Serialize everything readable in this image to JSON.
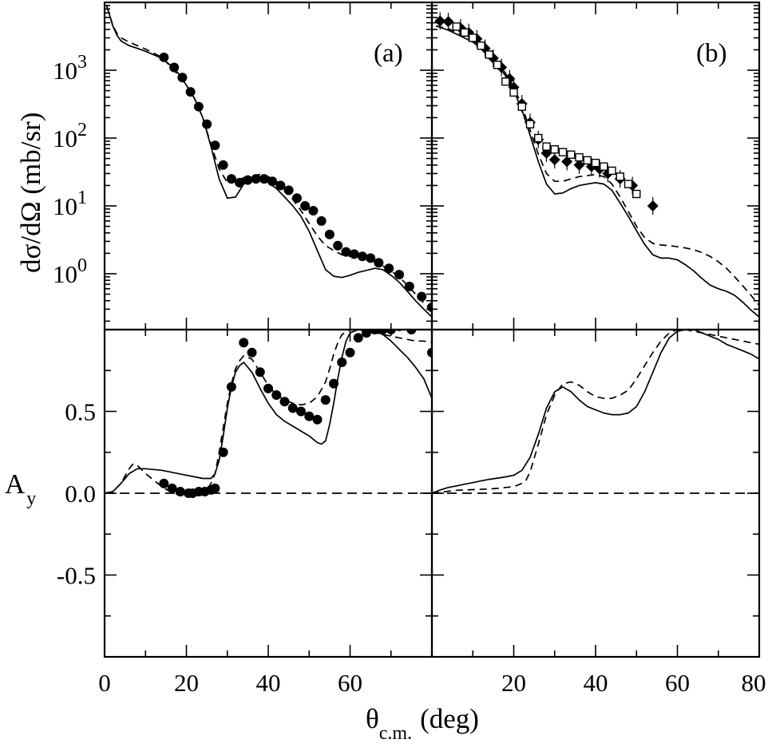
{
  "chart_data": [
    {
      "id": "a-top",
      "type": "line",
      "panel_label": "(a)",
      "ylabel": "dσ/dΩ (mb/sr)",
      "yscale": "log",
      "xlim": [
        0,
        80
      ],
      "ylim": [
        0.15,
        10000
      ],
      "ytick_values": [
        1,
        10,
        100,
        1000
      ],
      "ytick_labels": [
        {
          "base": "10",
          "exp": "0"
        },
        {
          "base": "10",
          "exp": "1"
        },
        {
          "base": "10",
          "exp": "2"
        },
        {
          "base": "10",
          "exp": "3"
        }
      ],
      "series": [
        {
          "name": "solid calculation",
          "style": "solid",
          "x": [
            0.5,
            2,
            3,
            4,
            6,
            8,
            10,
            14,
            16,
            18,
            20,
            22,
            24,
            26,
            28,
            30,
            32,
            34,
            36,
            38,
            40,
            42,
            44,
            46,
            48,
            50,
            52,
            54,
            56,
            58,
            60,
            62,
            64,
            66,
            68,
            70,
            72,
            74,
            76,
            78,
            80
          ],
          "y": [
            9000,
            4500,
            3300,
            2700,
            2300,
            2100,
            1900,
            1500,
            1200,
            900,
            600,
            380,
            200,
            75,
            25,
            13,
            13.5,
            21,
            25,
            25,
            22,
            18,
            13.5,
            10,
            7,
            4.2,
            2.2,
            1.15,
            0.92,
            0.88,
            0.95,
            1.05,
            1.12,
            1.2,
            1.15,
            0.95,
            0.75,
            0.55,
            0.4,
            0.3,
            0.23
          ]
        },
        {
          "name": "dashed calculation",
          "style": "dashed",
          "x": [
            0.5,
            2,
            3,
            4,
            6,
            8,
            10,
            14,
            16,
            18,
            20,
            22,
            24,
            26,
            28,
            30,
            32,
            34,
            36,
            38,
            40,
            42,
            44,
            46,
            48,
            50,
            52,
            54,
            56,
            58,
            60,
            62,
            64,
            66,
            68,
            70,
            72,
            74,
            76,
            78,
            80
          ],
          "y": [
            9000,
            4600,
            3500,
            3000,
            2600,
            2300,
            2050,
            1550,
            1150,
            850,
            600,
            380,
            200,
            80,
            35,
            22,
            23,
            26,
            28,
            29,
            27,
            23,
            17,
            12.5,
            8.5,
            5.5,
            3.6,
            2.6,
            2.2,
            1.9,
            1.8,
            1.75,
            1.65,
            1.5,
            1.3,
            1.1,
            0.9,
            0.68,
            0.5,
            0.37,
            0.29
          ]
        },
        {
          "name": "data",
          "style": "marker-circle-filled",
          "x": [
            14.5,
            17,
            19,
            21,
            23,
            25,
            27,
            29,
            31,
            33,
            35,
            37,
            39,
            41,
            43,
            45,
            47,
            49,
            51,
            53,
            55,
            57,
            59,
            61,
            63,
            65,
            67,
            69.5,
            72,
            74.5,
            77.5,
            80
          ],
          "y": [
            1550,
            1100,
            780,
            480,
            290,
            160,
            78,
            40,
            25,
            22,
            24,
            25,
            25,
            23,
            20,
            17,
            13,
            10,
            8.5,
            6,
            3.8,
            2.6,
            2.1,
            1.95,
            1.8,
            1.7,
            1.45,
            1.2,
            0.97,
            0.65,
            0.46,
            0.32
          ]
        }
      ]
    },
    {
      "id": "b-top",
      "type": "line",
      "panel_label": "(b)",
      "yscale": "log",
      "xlim": [
        0,
        80
      ],
      "ylim": [
        0.15,
        10000
      ],
      "series": [
        {
          "name": "solid calculation",
          "style": "solid",
          "x": [
            1,
            4,
            7,
            10,
            14,
            16,
            18,
            20,
            22,
            24,
            26,
            28,
            30,
            32,
            34,
            36,
            38,
            40,
            42,
            44,
            46,
            48,
            50,
            52,
            54,
            56,
            58,
            60,
            62,
            64,
            66,
            68,
            70,
            72,
            74,
            76,
            78,
            80
          ],
          "y": [
            4500,
            3900,
            3200,
            2600,
            1700,
            1250,
            820,
            500,
            260,
            110,
            45,
            21,
            15,
            15.5,
            18,
            20,
            21,
            22,
            21,
            17,
            11,
            7,
            4.3,
            2.7,
            1.9,
            1.7,
            1.7,
            1.6,
            1.35,
            1.1,
            0.85,
            0.68,
            0.6,
            0.55,
            0.48,
            0.38,
            0.29,
            0.23
          ]
        },
        {
          "name": "dashed calculation",
          "style": "dashed",
          "x": [
            1,
            4,
            7,
            10,
            14,
            16,
            18,
            20,
            22,
            24,
            26,
            28,
            30,
            32,
            34,
            36,
            38,
            40,
            42,
            44,
            46,
            48,
            50,
            52,
            54,
            56,
            58,
            60,
            62,
            64,
            66,
            68,
            70,
            72,
            74,
            76,
            78,
            80
          ],
          "y": [
            4500,
            4100,
            3400,
            2700,
            1800,
            1350,
            900,
            560,
            300,
            130,
            58,
            30,
            23,
            23,
            25,
            27,
            28,
            29,
            27,
            21,
            13.5,
            8.3,
            5,
            3.4,
            2.8,
            2.65,
            2.6,
            2.5,
            2.4,
            2.25,
            2.05,
            1.8,
            1.5,
            1.2,
            0.9,
            0.66,
            0.48,
            0.34
          ]
        },
        {
          "name": "data (filled diamonds)",
          "style": "marker-diamond-filled",
          "x": [
            2,
            4,
            7,
            9,
            11,
            13,
            15,
            17,
            19,
            20,
            22,
            24,
            26,
            28,
            30,
            33,
            36,
            39,
            41,
            43,
            46,
            49,
            54
          ],
          "y": [
            5300,
            5200,
            4200,
            3600,
            2900,
            2100,
            1500,
            1100,
            750,
            560,
            320,
            170,
            95,
            60,
            48,
            45,
            40,
            38,
            35,
            30,
            25,
            20,
            10
          ]
        },
        {
          "name": "data (open squares)",
          "style": "marker-square-open",
          "x": [
            6,
            8,
            10,
            12,
            14,
            16,
            18,
            20,
            22,
            24,
            26,
            28,
            30,
            32,
            34,
            36,
            38,
            40,
            42,
            44,
            46,
            48,
            50
          ],
          "y": [
            4400,
            3600,
            3000,
            2300,
            1700,
            1200,
            680,
            470,
            290,
            160,
            100,
            75,
            68,
            62,
            57,
            52,
            47,
            43,
            38,
            33,
            27,
            21,
            15
          ]
        }
      ]
    },
    {
      "id": "a-bottom",
      "type": "line",
      "ylabel_main": "A",
      "ylabel_sub": "y",
      "xlim": [
        0,
        80
      ],
      "ylim": [
        -1.0,
        1.0
      ],
      "ytick_values": [
        0.5,
        0.0,
        -0.5
      ],
      "ytick_labels": [
        "0.5",
        "0.0",
        "-0.5"
      ],
      "xtick_labels": [
        "0",
        "20",
        "40",
        "60"
      ],
      "xtick_values": [
        0,
        20,
        40,
        60
      ],
      "series": [
        {
          "name": "solid calculation",
          "style": "solid",
          "x": [
            0,
            2,
            4,
            6,
            8,
            10,
            14,
            18,
            22,
            24,
            26,
            27,
            28,
            29,
            30,
            31,
            32,
            33,
            34,
            36,
            38,
            40,
            42,
            44,
            46,
            48,
            50,
            52,
            53,
            54,
            55,
            56,
            57,
            58,
            59,
            60,
            62,
            64,
            66,
            68,
            70,
            72,
            74,
            76,
            78,
            80
          ],
          "y": [
            0,
            0.01,
            0.06,
            0.12,
            0.15,
            0.15,
            0.14,
            0.12,
            0.1,
            0.09,
            0.09,
            0.12,
            0.2,
            0.35,
            0.52,
            0.65,
            0.74,
            0.78,
            0.8,
            0.74,
            0.64,
            0.55,
            0.48,
            0.44,
            0.41,
            0.38,
            0.35,
            0.31,
            0.3,
            0.32,
            0.42,
            0.55,
            0.7,
            0.83,
            0.93,
            0.98,
            1.0,
            1.0,
            0.99,
            0.97,
            0.93,
            0.88,
            0.83,
            0.77,
            0.7,
            0.58
          ]
        },
        {
          "name": "dashed calculation",
          "style": "dashed",
          "x": [
            0,
            2,
            4,
            6,
            7,
            8,
            10,
            12,
            14,
            16,
            18,
            20,
            22,
            24,
            25,
            26,
            27,
            28,
            29,
            30,
            31,
            32,
            33,
            34,
            36,
            38,
            40,
            42,
            44,
            46,
            48,
            50,
            52,
            54,
            55,
            56,
            57,
            58,
            60,
            62,
            64,
            66,
            68,
            70,
            72,
            74,
            76,
            78,
            80
          ],
          "y": [
            0,
            0.01,
            0.06,
            0.15,
            0.18,
            0.17,
            0.12,
            0.08,
            0.04,
            0.01,
            -0.01,
            -0.02,
            -0.02,
            -0.01,
            0.02,
            0.06,
            0.12,
            0.25,
            0.4,
            0.55,
            0.67,
            0.76,
            0.81,
            0.84,
            0.82,
            0.74,
            0.66,
            0.6,
            0.57,
            0.55,
            0.54,
            0.55,
            0.59,
            0.68,
            0.76,
            0.85,
            0.92,
            0.97,
            1.0,
            1.0,
            0.99,
            0.98,
            0.97,
            0.96,
            0.95,
            0.94,
            0.93,
            0.93,
            0.92
          ]
        },
        {
          "name": "zero reference",
          "style": "dashed-reference",
          "x": [
            0,
            80
          ],
          "y": [
            0,
            0
          ]
        },
        {
          "name": "data",
          "style": "marker-circle-filled",
          "x": [
            14.5,
            16.5,
            18.5,
            20.5,
            21.5,
            23,
            24.5,
            26,
            27,
            29,
            31,
            34,
            36,
            38,
            40,
            42,
            44,
            46,
            48,
            50,
            52,
            54,
            56,
            58,
            60,
            62,
            64,
            66,
            68,
            70,
            72,
            75,
            80
          ],
          "y": [
            0.06,
            0.03,
            0.01,
            0.0,
            0.0,
            0.01,
            0.01,
            0.02,
            0.03,
            0.25,
            0.65,
            0.92,
            0.86,
            0.74,
            0.64,
            0.6,
            0.56,
            0.52,
            0.5,
            0.47,
            0.45,
            0.57,
            0.67,
            0.8,
            0.86,
            0.95,
            0.98,
            1.0,
            1.0,
            1.0,
            1.02,
            1.0,
            0.86
          ]
        }
      ]
    },
    {
      "id": "b-bottom",
      "type": "line",
      "xlim": [
        0,
        80
      ],
      "ylim": [
        -1.0,
        1.0
      ],
      "xtick_labels": [
        "20",
        "40",
        "60",
        "80"
      ],
      "xtick_values": [
        20,
        40,
        60,
        80
      ],
      "series": [
        {
          "name": "solid calculation",
          "style": "solid",
          "x": [
            0,
            2,
            4,
            6,
            8,
            10,
            12,
            14,
            16,
            18,
            20,
            22,
            24,
            26,
            28,
            30,
            32,
            34,
            36,
            38,
            40,
            42,
            44,
            46,
            48,
            50,
            52,
            54,
            56,
            58,
            60,
            62,
            64,
            66,
            68,
            70,
            72,
            74,
            76,
            78,
            80
          ],
          "y": [
            0,
            0.02,
            0.035,
            0.045,
            0.055,
            0.065,
            0.075,
            0.085,
            0.092,
            0.1,
            0.11,
            0.14,
            0.22,
            0.36,
            0.52,
            0.62,
            0.65,
            0.62,
            0.57,
            0.53,
            0.51,
            0.49,
            0.48,
            0.48,
            0.49,
            0.53,
            0.62,
            0.74,
            0.86,
            0.95,
            0.99,
            1.0,
            1.0,
            0.98,
            0.96,
            0.94,
            0.91,
            0.89,
            0.87,
            0.85,
            0.82
          ]
        },
        {
          "name": "dashed calculation",
          "style": "dashed",
          "x": [
            0,
            2,
            4,
            6,
            8,
            10,
            12,
            14,
            16,
            18,
            20,
            22,
            23,
            24,
            26,
            28,
            30,
            32,
            34,
            36,
            38,
            40,
            42,
            44,
            46,
            48,
            50,
            52,
            54,
            56,
            58,
            60,
            62,
            64,
            66,
            68,
            70,
            72,
            74,
            76,
            78,
            80
          ],
          "y": [
            0,
            0.005,
            0.012,
            0.018,
            0.02,
            0.022,
            0.024,
            0.026,
            0.03,
            0.035,
            0.04,
            0.06,
            0.08,
            0.13,
            0.3,
            0.48,
            0.6,
            0.67,
            0.68,
            0.66,
            0.62,
            0.59,
            0.58,
            0.58,
            0.6,
            0.63,
            0.7,
            0.78,
            0.86,
            0.93,
            0.98,
            1.0,
            1.0,
            0.99,
            0.98,
            0.97,
            0.96,
            0.95,
            0.94,
            0.93,
            0.92,
            0.91
          ]
        },
        {
          "name": "zero reference",
          "style": "dashed-reference",
          "x": [
            0,
            80
          ],
          "y": [
            0,
            0
          ]
        }
      ]
    }
  ],
  "xaxis_title": {
    "main": "θ",
    "sub": "c.m.",
    "unit": "(deg)"
  }
}
